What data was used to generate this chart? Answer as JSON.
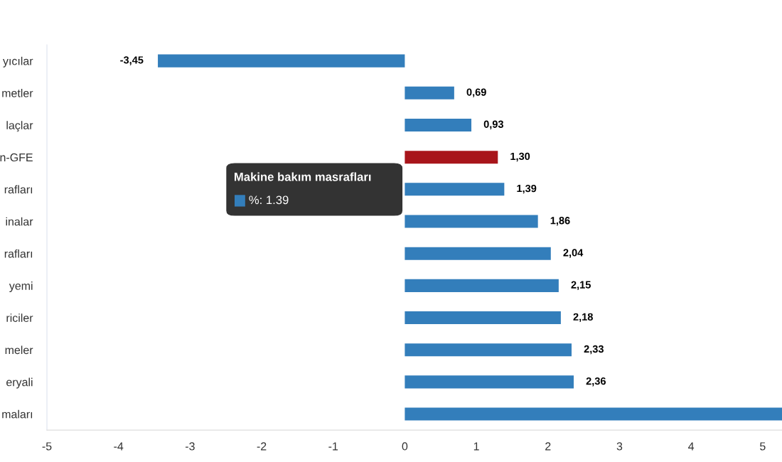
{
  "chart_data": {
    "type": "bar",
    "orientation": "horizontal",
    "categories": [
      "yıcılar",
      "metler",
      "laçlar",
      "n-GFE",
      "rafları",
      "inalar",
      "rafları",
      "yemi",
      "riciler",
      "meler",
      "eryali",
      "maları"
    ],
    "values": [
      -3.45,
      0.69,
      0.93,
      1.3,
      1.39,
      1.86,
      2.04,
      2.15,
      2.18,
      2.33,
      2.36,
      5.27
    ],
    "colors": [
      "#337ebb",
      "#337ebb",
      "#337ebb",
      "#a8151b",
      "#337ebb",
      "#337ebb",
      "#337ebb",
      "#337ebb",
      "#337ebb",
      "#337ebb",
      "#337ebb",
      "#337ebb"
    ],
    "value_labels": [
      "-3,45",
      "0,69",
      "0,93",
      "1,30",
      "1,39",
      "1,86",
      "2,04",
      "2,15",
      "2,18",
      "2,33",
      "2,36",
      null
    ],
    "xlim": [
      -5,
      5.27
    ],
    "xticks": [
      -5,
      -4,
      -3,
      -2,
      -1,
      0,
      1,
      2,
      3,
      4,
      5
    ],
    "grid": false,
    "legend": false,
    "annotations": [
      "Makine bakım masrafları",
      "%: 1.39"
    ]
  }
}
